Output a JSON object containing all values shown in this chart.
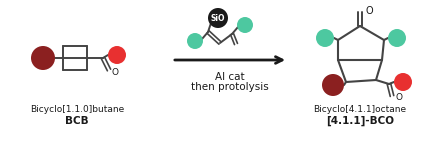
{
  "bg_color": "#ffffff",
  "dark_red": "#8B2020",
  "red": "#E83030",
  "teal": "#4DC8A0",
  "black": "#1a1a1a",
  "gray_line": "#444444",
  "title1": "Bicyclo[1.1.0]butane",
  "bold1": "BCB",
  "title2": "Bicyclo[4.1.1]octane",
  "bold2": "[4.1.1]-BCO",
  "arrow_text1": "Al cat",
  "arrow_text2": "then protolysis",
  "figsize": [
    4.36,
    1.48
  ],
  "dpi": 100
}
